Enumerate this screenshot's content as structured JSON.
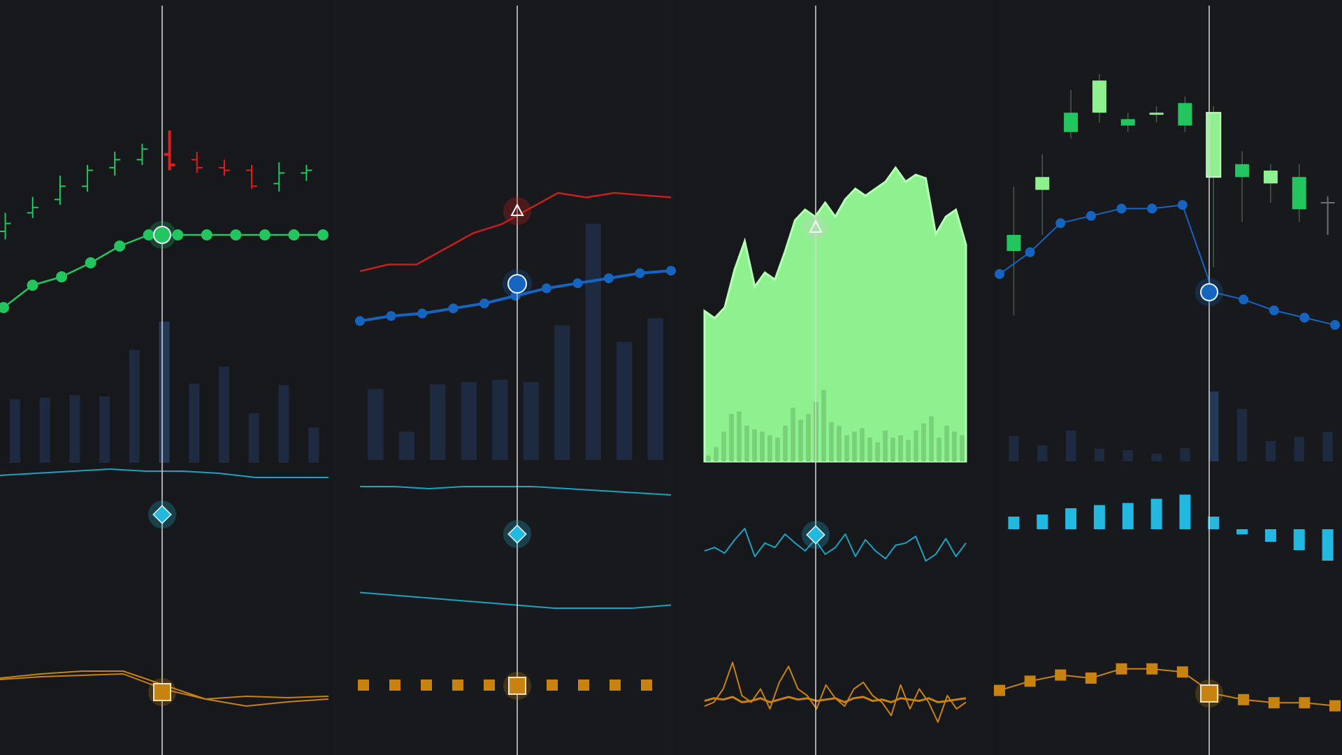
{
  "theme": {
    "background": "#16181c",
    "crosshair": "#d8d8d8",
    "volume": "#1e2a40",
    "volume_highlight": "#253858",
    "up_green": "#22c55e",
    "light_green": "#8ff08f",
    "down_red": "#e11d1d",
    "price_red": "#c81e1e",
    "ma_blue": "#1565c0",
    "oscillator_cyan": "#1aa3c0",
    "macd_cyan": "#22b8e0",
    "lower_orange": "#c8820f"
  },
  "chart_data": [
    {
      "type": "line",
      "name": "panel-1",
      "main": {
        "ohlc": [
          {
            "o": 55,
            "h": 62,
            "l": 52,
            "c": 58
          },
          {
            "o": 62,
            "h": 68,
            "l": 60,
            "c": 64
          },
          {
            "o": 67,
            "h": 76,
            "l": 65,
            "c": 72
          },
          {
            "o": 72,
            "h": 80,
            "l": 70,
            "c": 78
          },
          {
            "o": 79,
            "h": 85,
            "l": 76,
            "c": 82
          },
          {
            "o": 82,
            "h": 88,
            "l": 80,
            "c": 86
          },
          {
            "o": 84,
            "h": 93,
            "l": 78,
            "c": 80
          },
          {
            "o": 82,
            "h": 85,
            "l": 77,
            "c": 79
          },
          {
            "o": 79,
            "h": 82,
            "l": 76,
            "c": 78
          },
          {
            "o": 78,
            "h": 80,
            "l": 71,
            "c": 72
          },
          {
            "o": 73,
            "h": 81,
            "l": 70,
            "c": 77
          },
          {
            "o": 77,
            "h": 80,
            "l": 74,
            "c": 78
          }
        ],
        "ma": [
          40,
          48,
          51,
          56,
          62,
          66,
          66,
          66,
          66,
          66,
          66,
          66
        ],
        "highlight_index": 6
      },
      "volume": [
        45,
        46,
        48,
        47,
        80,
        100,
        56,
        68,
        35,
        55,
        25
      ],
      "osc1": [
        [
          60,
          61,
          62,
          63,
          62,
          62,
          61,
          59,
          59,
          59
        ]
      ],
      "osc2": [
        [
          55,
          58,
          60,
          60,
          50,
          40,
          35,
          38,
          40
        ],
        [
          54,
          56,
          57,
          58,
          47,
          40,
          42,
          41,
          42
        ]
      ]
    },
    {
      "type": "line",
      "name": "panel-2",
      "main": {
        "price": [
          35,
          38,
          38,
          45,
          52,
          56,
          63,
          70,
          68,
          70,
          69,
          68
        ],
        "ma": [
          28,
          30,
          31,
          33,
          35,
          38,
          41,
          43,
          45,
          47,
          48
        ],
        "highlight_index": 5
      },
      "volume": [
        30,
        12,
        32,
        33,
        34,
        33,
        57,
        100,
        50,
        60
      ],
      "osc1": [
        [
          58,
          58,
          57,
          58,
          58,
          58,
          57,
          56,
          55,
          54
        ]
      ],
      "osc2": [
        [
          45,
          44,
          43,
          42,
          41,
          40,
          40,
          40,
          41
        ]
      ],
      "dots": [
        50,
        50,
        50,
        50,
        50,
        50,
        50,
        50,
        50,
        50
      ]
    },
    {
      "type": "area",
      "name": "panel-3",
      "main": {
        "price": [
          43,
          41,
          44,
          55,
          63,
          50,
          54,
          52,
          60,
          69,
          72,
          70,
          74,
          70,
          75,
          78,
          76,
          78,
          80,
          84,
          80,
          82,
          81,
          65,
          70,
          72,
          62
        ],
        "highlight_index": 7
      },
      "volume": [
        5,
        12,
        25,
        40,
        42,
        30,
        27,
        25,
        22,
        20,
        30,
        45,
        35,
        40,
        50,
        60,
        33,
        30,
        22,
        25,
        28,
        20,
        16,
        26,
        20,
        22,
        18,
        26,
        32,
        38,
        20,
        30,
        25,
        22
      ],
      "osc1": [
        [
          45,
          48,
          43,
          55,
          65,
          40,
          52,
          48,
          60,
          52,
          45,
          55,
          42,
          48,
          60,
          40,
          55,
          45,
          38,
          50,
          52,
          58,
          36,
          42,
          56,
          40,
          52
        ]
      ],
      "osc2": [
        [
          42,
          45,
          55,
          75,
          50,
          45,
          55,
          40,
          60,
          72,
          55,
          50,
          40,
          58,
          48,
          42,
          55,
          60,
          50,
          45,
          35,
          58,
          40,
          55,
          45,
          30,
          50,
          40,
          45
        ],
        [
          46,
          48,
          47,
          49,
          45,
          46,
          48,
          45,
          47,
          49,
          47,
          48,
          46,
          47,
          48,
          45,
          48,
          49,
          46,
          47,
          45,
          48,
          47,
          46,
          48,
          45,
          46,
          47,
          48
        ]
      ]
    },
    {
      "type": "bar",
      "name": "panel-4",
      "main": {
        "ohlc": [
          {
            "o": 40,
            "h": 55,
            "l": 15,
            "c": 35
          },
          {
            "o": 54,
            "h": 65,
            "l": 40,
            "c": 58
          },
          {
            "o": 72,
            "h": 85,
            "l": 70,
            "c": 78
          },
          {
            "o": 78,
            "h": 90,
            "l": 75,
            "c": 88
          },
          {
            "o": 74,
            "h": 78,
            "l": 72,
            "c": 76
          },
          {
            "o": 78,
            "h": 80,
            "l": 75,
            "c": 78
          },
          {
            "o": 74,
            "h": 83,
            "l": 72,
            "c": 81
          },
          {
            "o": 78,
            "h": 80,
            "l": 30,
            "c": 58
          },
          {
            "o": 62,
            "h": 66,
            "l": 44,
            "c": 58
          },
          {
            "o": 60,
            "h": 62,
            "l": 50,
            "c": 56
          },
          {
            "o": 58,
            "h": 62,
            "l": 44,
            "c": 48
          },
          {
            "o": 50,
            "h": 52,
            "l": 40,
            "c": 50
          }
        ],
        "ma": [
          40,
          46,
          54,
          56,
          58,
          58,
          59,
          35,
          33,
          30,
          28,
          26
        ],
        "highlight_index": 7
      },
      "volume": [
        36,
        23,
        44,
        18,
        16,
        11,
        19,
        100,
        75,
        29,
        35,
        42
      ],
      "histogram": [
        12,
        14,
        20,
        23,
        25,
        29,
        33,
        12,
        -5,
        -12,
        -20,
        -30
      ],
      "osc2": [
        [
          42,
          48,
          52,
          50,
          56,
          56,
          54,
          40,
          36,
          34,
          34,
          32
        ]
      ]
    }
  ]
}
